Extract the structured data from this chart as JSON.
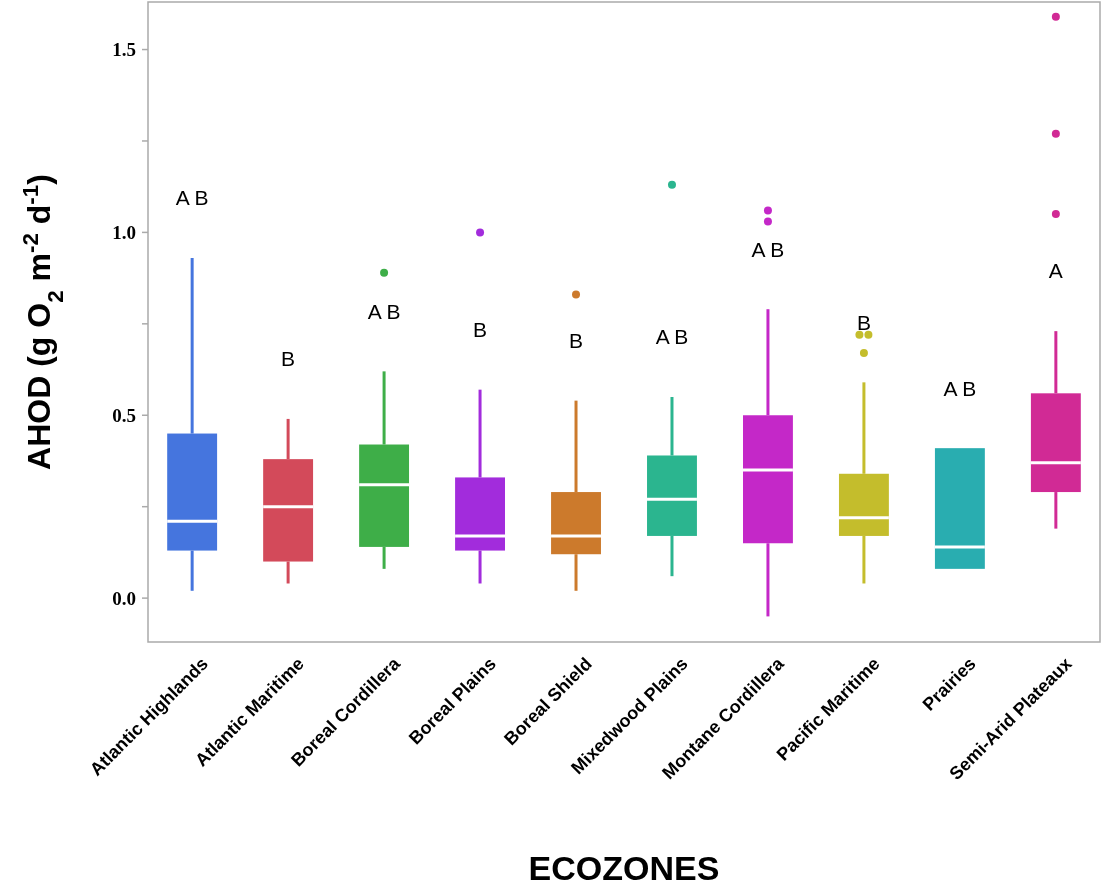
{
  "chart_data": {
    "type": "box",
    "xlabel": "ECOZONES",
    "ylabel": "AHOD (g O$_{2}$ m$^{-2}$ d$^{-1}$)",
    "categories": [
      "Atlantic Highlands",
      "Atlantic Maritime",
      "Boreal Cordillera",
      "Boreal Plains",
      "Boreal Shield",
      "Mixedwood Plains",
      "Montane Cordillera",
      "Pacific Maritime",
      "Prairies",
      "Semi-Arid Plateaux"
    ],
    "colors": [
      "#4575de",
      "#d34a5a",
      "#3eae48",
      "#a22cdc",
      "#cc7a2c",
      "#2bb58f",
      "#c428c8",
      "#c4bd2c",
      "#29adb0",
      "#d12a95"
    ],
    "boxes": [
      {
        "low": 0.02,
        "q1": 0.13,
        "median": 0.21,
        "q3": 0.45,
        "high": 0.93
      },
      {
        "low": 0.04,
        "q1": 0.1,
        "median": 0.25,
        "q3": 0.38,
        "high": 0.49
      },
      {
        "low": 0.08,
        "q1": 0.14,
        "median": 0.31,
        "q3": 0.42,
        "high": 0.62,
        "outliers": [
          0.89
        ]
      },
      {
        "low": 0.04,
        "q1": 0.13,
        "median": 0.17,
        "q3": 0.33,
        "high": 0.57,
        "outliers": [
          1.0
        ]
      },
      {
        "low": 0.02,
        "q1": 0.12,
        "median": 0.17,
        "q3": 0.29,
        "high": 0.54,
        "outliers": [
          0.83
        ]
      },
      {
        "low": 0.06,
        "q1": 0.17,
        "median": 0.27,
        "q3": 0.39,
        "high": 0.55,
        "outliers": [
          1.13
        ]
      },
      {
        "low": -0.05,
        "q1": 0.15,
        "median": 0.35,
        "q3": 0.5,
        "high": 0.79,
        "outliers": [
          1.06,
          1.03
        ]
      },
      {
        "low": 0.04,
        "q1": 0.17,
        "median": 0.22,
        "q3": 0.34,
        "high": 0.59,
        "outliers": [
          0.72,
          0.72,
          0.67
        ]
      },
      {
        "low": 0.08,
        "q1": 0.08,
        "median": 0.14,
        "q3": 0.41,
        "high": 0.41
      },
      {
        "low": 0.19,
        "q1": 0.29,
        "median": 0.37,
        "q3": 0.56,
        "high": 0.73,
        "outliers": [
          1.59,
          1.27,
          1.05
        ]
      }
    ],
    "ylim": [
      -0.12,
      1.63
    ],
    "yticks": [
      {
        "value": 0,
        "label": "0.0"
      },
      {
        "value": 0.25,
        "label": null
      },
      {
        "value": 0.5,
        "label": "0.5"
      },
      {
        "value": 0.75,
        "label": null
      },
      {
        "value": 1,
        "label": "1.0"
      },
      {
        "value": 1.25,
        "label": null
      },
      {
        "value": 1.5,
        "label": "1.5"
      }
    ],
    "annotations": [
      "A B",
      "B",
      "A B",
      "B",
      "B",
      "A B",
      "A B",
      "B",
      "A B",
      "A"
    ]
  }
}
